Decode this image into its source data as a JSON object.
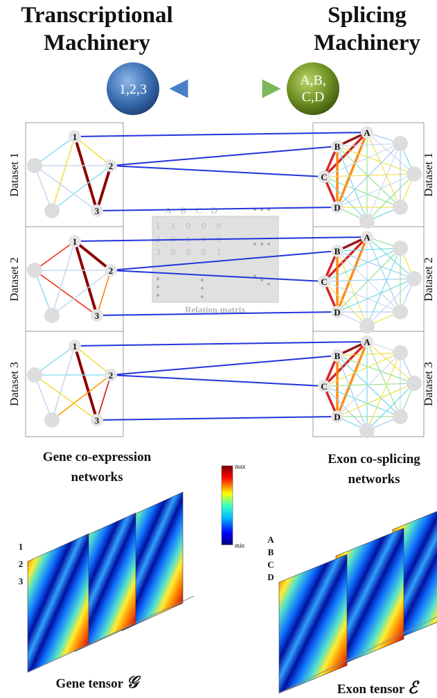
{
  "header": {
    "left_title": [
      "Transcriptional",
      "Machinery"
    ],
    "right_title": [
      "Splicing",
      "Machinery"
    ],
    "left_ball": "1,2,3",
    "right_ball": [
      "A,B,",
      "C,D"
    ]
  },
  "datasets": [
    "Dataset 1",
    "Dataset 2",
    "Dataset 3"
  ],
  "gene_nodes": [
    "1",
    "2",
    "3"
  ],
  "exon_nodes": [
    "A",
    "B",
    "C",
    "D"
  ],
  "relation_matrix": {
    "columns": [
      "A",
      "B",
      "C",
      "D"
    ],
    "rows": [
      "1",
      "2",
      "3"
    ],
    "cells": [
      [
        1,
        0,
        0,
        0
      ],
      [
        0,
        1,
        1,
        0
      ],
      [
        0,
        0,
        0,
        1
      ]
    ],
    "label": "Relation matrix"
  },
  "captions": {
    "gene_networks": [
      "Gene co-expression",
      "networks"
    ],
    "exon_networks": [
      "Exon co-splicing",
      "networks"
    ]
  },
  "colorbar": {
    "max": "max",
    "min": "min"
  },
  "gene_tensor": {
    "label": "Gene tensor",
    "symbol": "𝒢",
    "rows": [
      "1",
      "2",
      "3"
    ]
  },
  "exon_tensor": {
    "label": "Exon tensor",
    "symbol": "ℰ",
    "rows": [
      "A",
      "B",
      "C",
      "D"
    ]
  }
}
